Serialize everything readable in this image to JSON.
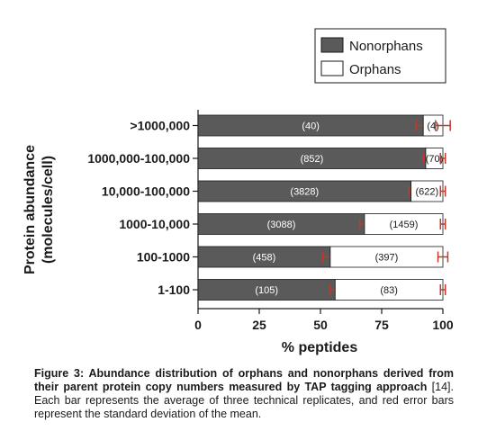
{
  "chart_data": {
    "type": "bar",
    "orientation": "horizontal",
    "stacked": true,
    "ylabel_lines": [
      "Protein abundance",
      "(molecules/cell)"
    ],
    "xlabel": "% peptides",
    "xlim": [
      0,
      100
    ],
    "xticks": [
      "0",
      "25",
      "50",
      "75",
      "100"
    ],
    "categories": [
      ">1000,000",
      "1000,000-100,000",
      "10,000-100,000",
      "1000-10,000",
      "100-1000",
      "1-100"
    ],
    "series": [
      {
        "name": "Nonorphans",
        "color": "#5a5a5a",
        "values": [
          92,
          93,
          87,
          68,
          54,
          56
        ],
        "error": [
          3,
          1,
          1,
          2,
          3,
          2
        ],
        "counts": [
          "(40)",
          "(852)",
          "(3828)",
          "(3088)",
          "(458)",
          "(105)"
        ]
      },
      {
        "name": "Orphans",
        "color": "#ffffff",
        "values": [
          8,
          7,
          13,
          32,
          46,
          44
        ],
        "error": [
          3,
          1,
          1,
          1,
          2,
          1
        ],
        "counts": [
          "(4)",
          "(70)",
          "(622)",
          "(1459)",
          "(397)",
          "(83)"
        ]
      }
    ],
    "error_bar_color": "#c0392b",
    "legend_position": "top-right"
  },
  "caption": {
    "label": "Figure 3: Abundance distribution of orphans and nonorphans derived from their parent protein copy numbers measured by TAP tagging approach",
    "text": " [14]. Each bar represents the average of three technical replicates, and red error bars represent the standard deviation of the mean."
  }
}
